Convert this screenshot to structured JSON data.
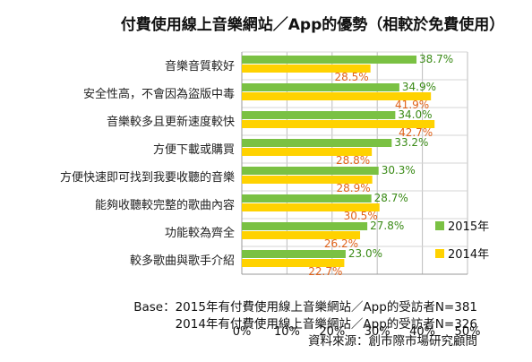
{
  "chart_data": {
    "type": "bar",
    "orientation": "horizontal",
    "title": "付費使用線上音樂網站／App的優勢（相較於免費使用）",
    "categories": [
      "音樂音質較好",
      "安全性高，不會因為盜版中毒",
      "音樂較多且更新速度較快",
      "方便下載或購買",
      "方便快速即可找到我要收聽的音樂",
      "能夠收聽較完整的歌曲內容",
      "功能較為齊全",
      "較多歌曲與歌手介紹"
    ],
    "series": [
      {
        "name": "2015年",
        "color": "#7ac143",
        "values": [
          38.7,
          34.9,
          34.0,
          33.2,
          30.3,
          28.7,
          27.8,
          23.0
        ]
      },
      {
        "name": "2014年",
        "color": "#ffd200",
        "values": [
          28.5,
          41.9,
          42.7,
          28.8,
          28.9,
          30.5,
          26.2,
          22.7
        ]
      }
    ],
    "xlim": [
      0,
      50
    ],
    "xticks": [
      "0%",
      "10%",
      "20%",
      "30%",
      "40%",
      "50%"
    ],
    "value_suffix": "%",
    "legend_position": "right",
    "grid": true
  },
  "notes": {
    "base_line1": "Base：2015年有付費使用線上音樂網站／App的受訪者N=381",
    "base_line2": "2014年有付費使用線上音樂網站／App的受訪者N=326",
    "source": "資料來源：創市際市場研究顧問"
  }
}
